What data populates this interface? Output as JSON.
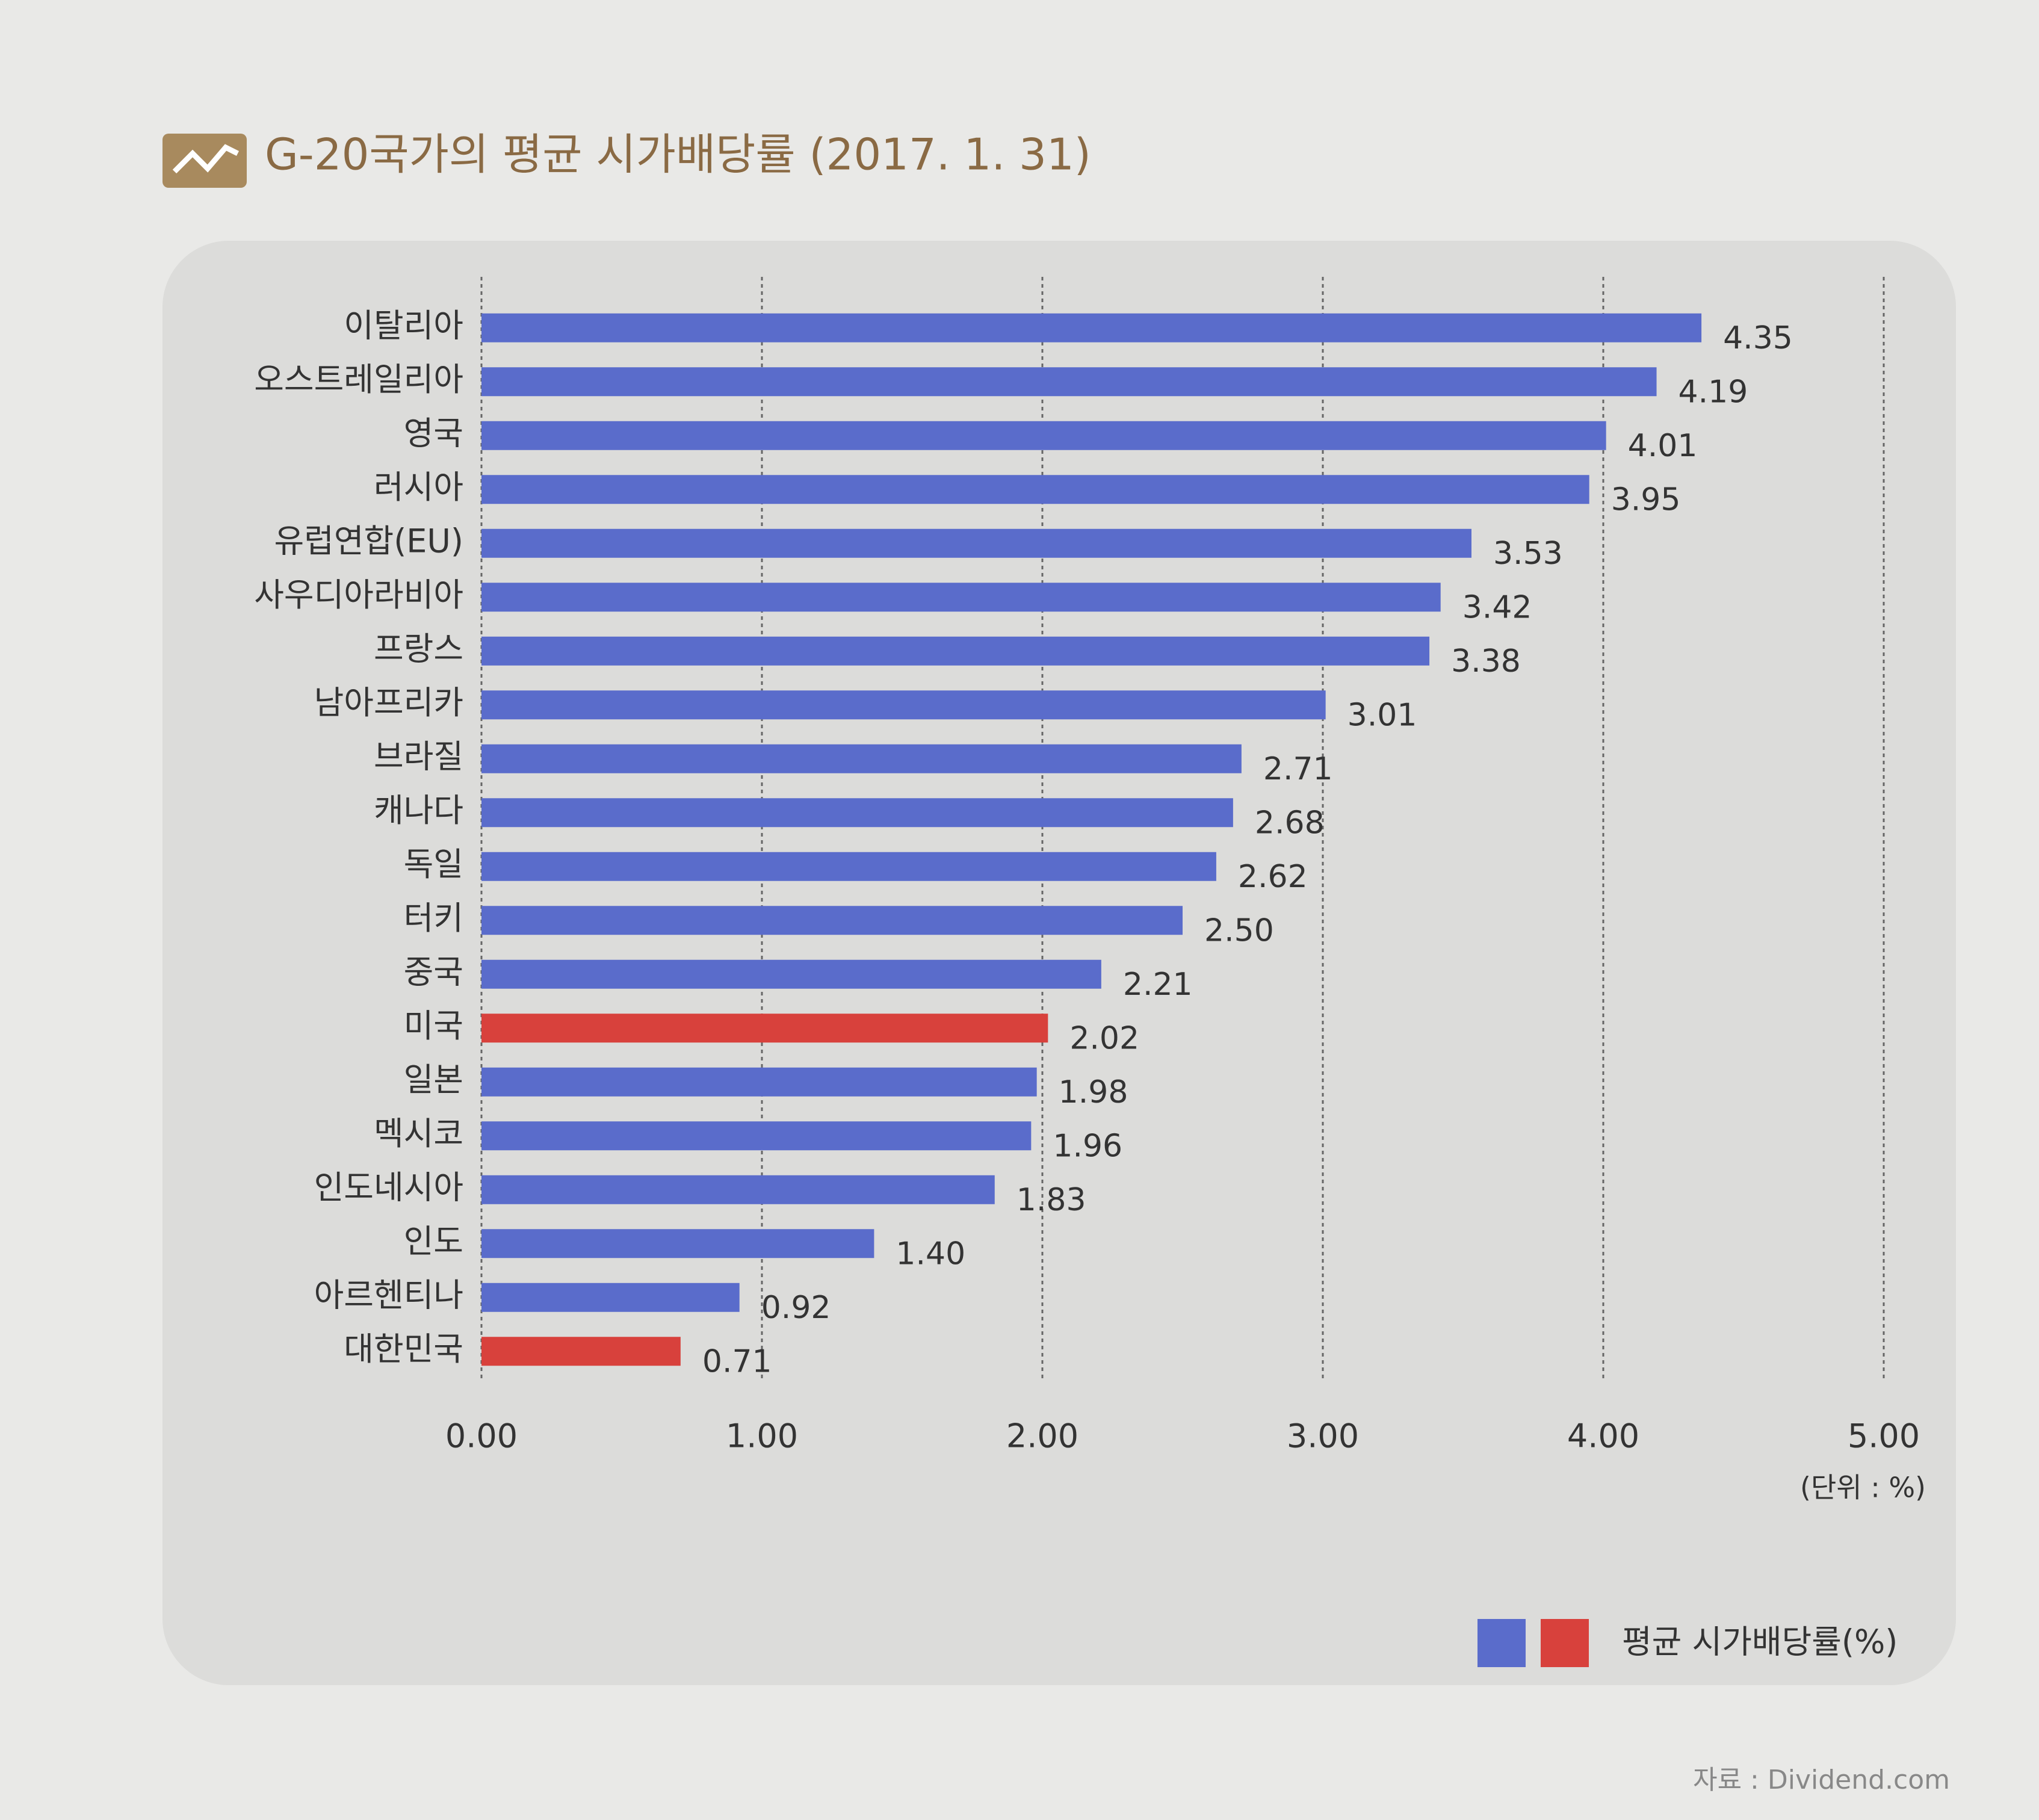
{
  "chart_data": {
    "type": "barh",
    "title": "G-20국가의 평균 시가배당률 (2017. 1. 31)",
    "unit_label": "(단위 : %)",
    "source": "자료 : Dividend.com",
    "categories": [
      "이탈리아",
      "오스트레일리아",
      "영국",
      "러시아",
      "유럽연합(EU)",
      "사우디아라비아",
      "프랑스",
      "남아프리카",
      "브라질",
      "캐나다",
      "독일",
      "터키",
      "중국",
      "미국",
      "일본",
      "멕시코",
      "인도네시아",
      "인도",
      "아르헨티나",
      "대한민국"
    ],
    "series": [
      {
        "name": "평균 시가배당률(%)",
        "values": [
          4.35,
          4.19,
          4.01,
          3.95,
          3.53,
          3.42,
          3.38,
          3.01,
          2.71,
          2.68,
          2.62,
          2.5,
          2.21,
          2.02,
          1.98,
          1.96,
          1.83,
          1.4,
          0.92,
          0.71
        ],
        "value_labels": [
          "4.35",
          "4.19",
          "4.01",
          "3.95",
          "3.53",
          "3.42",
          "3.38",
          "3.01",
          "2.71",
          "2.68",
          "2.62",
          "2.50",
          "2.21",
          "2.02",
          "1.98",
          "1.96",
          "1.83",
          "1.40",
          "0.92",
          "0.71"
        ],
        "colors": [
          "#5a6ccb",
          "#5a6ccb",
          "#5a6ccb",
          "#5a6ccb",
          "#5a6ccb",
          "#5a6ccb",
          "#5a6ccb",
          "#5a6ccb",
          "#5a6ccb",
          "#5a6ccb",
          "#5a6ccb",
          "#5a6ccb",
          "#5a6ccb",
          "#d8413c",
          "#5a6ccb",
          "#5a6ccb",
          "#5a6ccb",
          "#5a6ccb",
          "#5a6ccb",
          "#d8413c"
        ]
      }
    ],
    "xlim": [
      0,
      5
    ],
    "xticks": [
      {
        "value": 0,
        "label": "0.00"
      },
      {
        "value": 1,
        "label": "1.00"
      },
      {
        "value": 2,
        "label": "2.00"
      },
      {
        "value": 3,
        "label": "3.00"
      },
      {
        "value": 4,
        "label": "4.00"
      },
      {
        "value": 5,
        "label": "5.00"
      }
    ],
    "grid": true
  }
}
